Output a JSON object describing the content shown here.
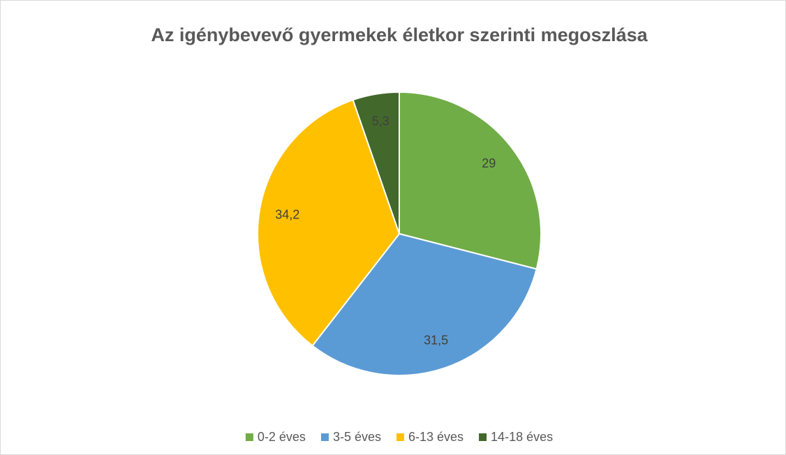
{
  "chart_data": {
    "type": "pie",
    "title": "Az igénybevevő gyermekek életkor szerinti megoszlása",
    "categories": [
      "0-2 éves",
      "3-5 éves",
      "6-13 éves",
      "14-18 éves"
    ],
    "values": [
      29,
      31.5,
      34.2,
      5.3
    ],
    "value_labels": [
      "29",
      "31,5",
      "34,2",
      "5,3"
    ],
    "colors": [
      "#70ad47",
      "#5b9bd5",
      "#ffc000",
      "#43682b"
    ],
    "legend": "bottom"
  }
}
